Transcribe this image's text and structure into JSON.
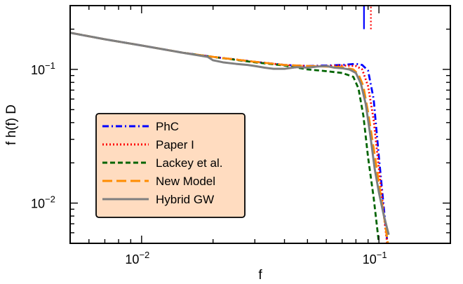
{
  "chart_data": {
    "type": "line",
    "title": "",
    "xlabel": "f",
    "ylabel": "f h(f) D",
    "xscale": "log",
    "yscale": "log",
    "xlim": [
      0.005,
      0.2
    ],
    "ylim": [
      0.005,
      0.3
    ],
    "grid": false,
    "legend_position": "lower-left",
    "x_ticks": [
      {
        "value": 0.01,
        "mantissa": "10",
        "exponent": "−2"
      },
      {
        "value": 0.1,
        "mantissa": "10",
        "exponent": "−1"
      }
    ],
    "y_ticks": [
      {
        "value": 0.01,
        "mantissa": "10",
        "exponent": "−2"
      },
      {
        "value": 0.1,
        "mantissa": "10",
        "exponent": "−1"
      }
    ],
    "series": [
      {
        "name": "PhC",
        "color": "#0000ff",
        "dash": "dashdot",
        "points": [
          [
            0.005,
            0.188
          ],
          [
            0.007,
            0.168
          ],
          [
            0.01,
            0.151
          ],
          [
            0.015,
            0.133
          ],
          [
            0.02,
            0.124
          ],
          [
            0.03,
            0.114
          ],
          [
            0.04,
            0.108
          ],
          [
            0.05,
            0.106
          ],
          [
            0.06,
            0.107
          ],
          [
            0.07,
            0.108
          ],
          [
            0.08,
            0.11
          ],
          [
            0.085,
            0.108
          ],
          [
            0.09,
            0.098
          ],
          [
            0.095,
            0.06
          ],
          [
            0.1,
            0.022
          ],
          [
            0.105,
            0.009
          ],
          [
            0.11,
            0.004
          ]
        ]
      },
      {
        "name": "Paper I",
        "color": "#ff0000",
        "dash": "dotted",
        "points": [
          [
            0.005,
            0.188
          ],
          [
            0.007,
            0.168
          ],
          [
            0.01,
            0.151
          ],
          [
            0.015,
            0.133
          ],
          [
            0.02,
            0.124
          ],
          [
            0.03,
            0.114
          ],
          [
            0.04,
            0.108
          ],
          [
            0.05,
            0.106
          ],
          [
            0.06,
            0.106
          ],
          [
            0.07,
            0.107
          ],
          [
            0.08,
            0.106
          ],
          [
            0.085,
            0.1
          ],
          [
            0.09,
            0.075
          ],
          [
            0.095,
            0.042
          ],
          [
            0.1,
            0.018
          ],
          [
            0.105,
            0.008
          ],
          [
            0.11,
            0.004
          ]
        ]
      },
      {
        "name": "Lackey et al.",
        "color": "#006400",
        "dash": "dashed",
        "points": [
          [
            0.005,
            0.188
          ],
          [
            0.007,
            0.168
          ],
          [
            0.01,
            0.151
          ],
          [
            0.015,
            0.133
          ],
          [
            0.02,
            0.124
          ],
          [
            0.03,
            0.113
          ],
          [
            0.04,
            0.107
          ],
          [
            0.05,
            0.1
          ],
          [
            0.06,
            0.097
          ],
          [
            0.07,
            0.094
          ],
          [
            0.078,
            0.088
          ],
          [
            0.082,
            0.072
          ],
          [
            0.086,
            0.045
          ],
          [
            0.09,
            0.022
          ],
          [
            0.095,
            0.011
          ],
          [
            0.1,
            0.005
          ],
          [
            0.105,
            0.0025
          ]
        ]
      },
      {
        "name": "New Model",
        "color": "#ff8c00",
        "dash": "longdash",
        "points": [
          [
            0.005,
            0.188
          ],
          [
            0.007,
            0.168
          ],
          [
            0.01,
            0.151
          ],
          [
            0.015,
            0.133
          ],
          [
            0.02,
            0.124
          ],
          [
            0.03,
            0.114
          ],
          [
            0.04,
            0.108
          ],
          [
            0.05,
            0.106
          ],
          [
            0.06,
            0.105
          ],
          [
            0.07,
            0.104
          ],
          [
            0.078,
            0.1
          ],
          [
            0.082,
            0.092
          ],
          [
            0.086,
            0.075
          ],
          [
            0.09,
            0.048
          ],
          [
            0.095,
            0.026
          ],
          [
            0.1,
            0.014
          ],
          [
            0.105,
            0.008
          ],
          [
            0.11,
            0.0045
          ]
        ]
      },
      {
        "name": "Hybrid GW",
        "color": "#7f7f7f",
        "dash": "solid",
        "points": [
          [
            0.005,
            0.188
          ],
          [
            0.007,
            0.168
          ],
          [
            0.01,
            0.151
          ],
          [
            0.015,
            0.133
          ],
          [
            0.019,
            0.124
          ],
          [
            0.02,
            0.117
          ],
          [
            0.022,
            0.113
          ],
          [
            0.025,
            0.11
          ],
          [
            0.028,
            0.108
          ],
          [
            0.03,
            0.106
          ],
          [
            0.033,
            0.103
          ],
          [
            0.036,
            0.101
          ],
          [
            0.04,
            0.101
          ],
          [
            0.045,
            0.104
          ],
          [
            0.05,
            0.103
          ],
          [
            0.055,
            0.105
          ],
          [
            0.06,
            0.106
          ],
          [
            0.065,
            0.103
          ],
          [
            0.07,
            0.102
          ],
          [
            0.075,
            0.1
          ],
          [
            0.08,
            0.094
          ],
          [
            0.084,
            0.078
          ],
          [
            0.088,
            0.055
          ],
          [
            0.092,
            0.032
          ],
          [
            0.096,
            0.018
          ],
          [
            0.1,
            0.012
          ],
          [
            0.105,
            0.008
          ],
          [
            0.11,
            0.0058
          ]
        ]
      }
    ],
    "markers": [
      {
        "x": 0.0865,
        "color": "#0000ff",
        "dash": "solid",
        "y_from": 0.2,
        "y_to": 0.3
      },
      {
        "x": 0.0925,
        "color": "#ff0000",
        "dash": "dotted",
        "y_from": 0.2,
        "y_to": 0.3
      }
    ]
  }
}
